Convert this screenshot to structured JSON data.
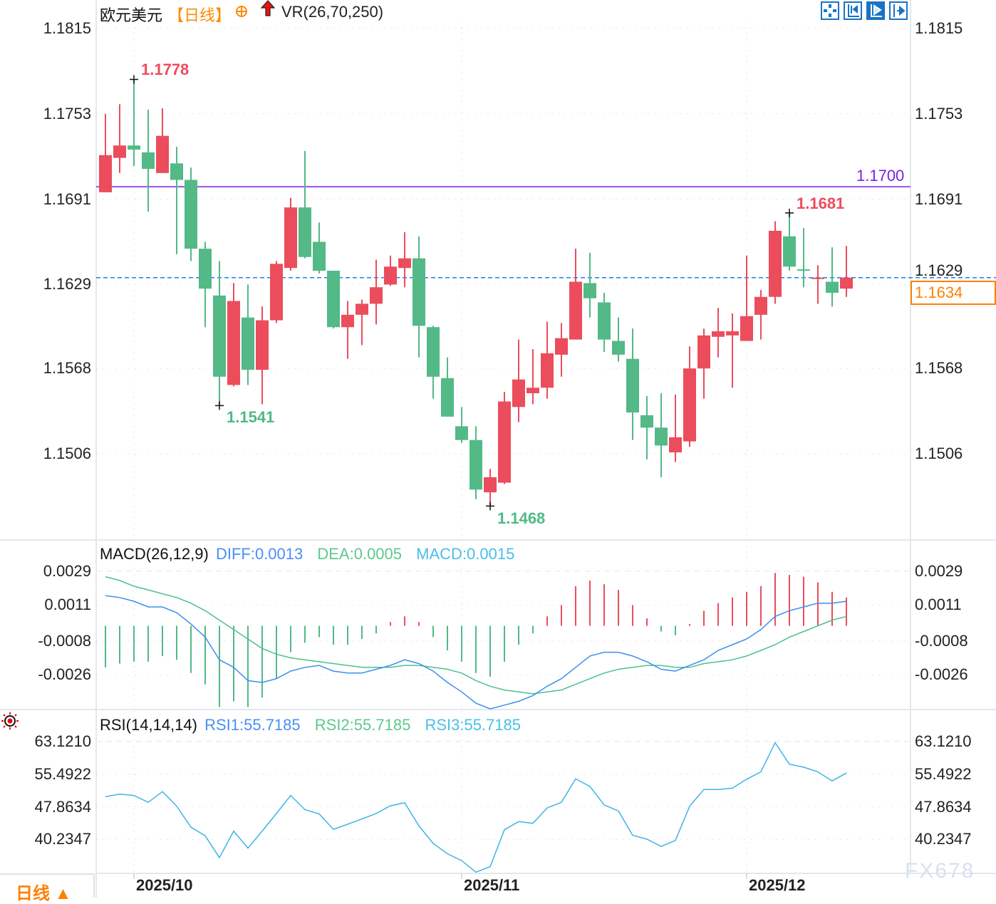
{
  "header": {
    "symbol": "欧元美元",
    "period": "【日线】",
    "add_icon": "circle-plus-icon",
    "indicator_icon": "red-up-arrow-icon",
    "indicator": "VR(26,70,250)"
  },
  "toolbar": {
    "icons": [
      "crosshair-move-icon",
      "zoom-range-icon",
      "draw-tool-icon",
      "scroll-to-end-icon"
    ]
  },
  "colors": {
    "up": "#eb4d5c",
    "down": "#52b987",
    "resistance": "#7b1fe6",
    "last_price": "#ff8000",
    "diff": "#3a8ff0",
    "dea": "#4cc28a",
    "rsi": "#3db5e6"
  },
  "main": {
    "y_ticks": [
      "1.1815",
      "1.1753",
      "1.1691",
      "1.1629",
      "1.1568",
      "1.1506"
    ],
    "resistance_label": "1.1700",
    "last_price_label": "1.1634",
    "high_label": "1.1778",
    "recent_high_label": "1.1681",
    "low_label": "1.1541",
    "recent_low_label": "1.1468"
  },
  "macd": {
    "title": "MACD(26,12,9)",
    "diff_label": "DIFF:0.0013",
    "dea_label": "DEA:0.0005",
    "macd_label": "MACD:0.0015",
    "y_ticks": [
      "0.0029",
      "0.0011",
      "-0.0008",
      "-0.0026"
    ]
  },
  "rsi": {
    "icon": "indicator-settings-icon",
    "title": "RSI(14,14,14)",
    "rsi1_label": "RSI1:55.7185",
    "rsi2_label": "RSI2:55.7185",
    "rsi3_label": "RSI3:55.7185",
    "y_ticks": [
      "63.1210",
      "55.4922",
      "47.8634",
      "40.2347"
    ]
  },
  "x_axis": {
    "labels": [
      "2025/10",
      "2025/11",
      "2025/12"
    ]
  },
  "footer": {
    "period_button": "日线 ▲",
    "watermark": "FX678"
  },
  "chart_data": [
    {
      "type": "candlestick",
      "title": "欧元美元",
      "ylim": [
        1.144,
        1.1815
      ],
      "y_ticks": [
        1.1815,
        1.1753,
        1.1691,
        1.1629,
        1.1568,
        1.1506
      ],
      "x_tick_labels": [
        "2025/10",
        "2025/11",
        "2025/12"
      ],
      "x_tick_candle_index": [
        2,
        25,
        45
      ],
      "grid": true,
      "horizontal_lines": [
        {
          "value": 1.17,
          "style": "solid"
        },
        {
          "value": 1.1634,
          "style": "dashed"
        }
      ],
      "annotations": [
        {
          "text": "1.1778",
          "candle_index": 2,
          "kind": "high"
        },
        {
          "text": "1.1541",
          "candle_index": 8,
          "kind": "low"
        },
        {
          "text": "1.1468",
          "candle_index": 27,
          "kind": "low"
        },
        {
          "text": "1.1681",
          "candle_index": 48,
          "kind": "high"
        }
      ],
      "ohlc_fields": [
        "open",
        "high",
        "low",
        "close"
      ],
      "candles": [
        [
          1.1696,
          1.1753,
          1.1696,
          1.1723
        ],
        [
          1.1721,
          1.176,
          1.171,
          1.173
        ],
        [
          1.173,
          1.1778,
          1.1715,
          1.1727
        ],
        [
          1.1725,
          1.1756,
          1.1682,
          1.1713
        ],
        [
          1.171,
          1.1757,
          1.171,
          1.1737
        ],
        [
          1.1717,
          1.1729,
          1.1651,
          1.1705
        ],
        [
          1.1705,
          1.1714,
          1.1646,
          1.1655
        ],
        [
          1.1655,
          1.166,
          1.1598,
          1.1626
        ],
        [
          1.1621,
          1.1646,
          1.1541,
          1.1562
        ],
        [
          1.1556,
          1.163,
          1.1555,
          1.1617
        ],
        [
          1.1605,
          1.1629,
          1.1556,
          1.1567
        ],
        [
          1.1567,
          1.1613,
          1.1542,
          1.1603
        ],
        [
          1.1603,
          1.1646,
          1.1601,
          1.1644
        ],
        [
          1.1641,
          1.1692,
          1.1639,
          1.1685
        ],
        [
          1.1685,
          1.1726,
          1.1648,
          1.1649
        ],
        [
          1.166,
          1.1674,
          1.1637,
          1.1639
        ],
        [
          1.1639,
          1.1639,
          1.1597,
          1.1598
        ],
        [
          1.1598,
          1.1617,
          1.1575,
          1.1607
        ],
        [
          1.1607,
          1.1618,
          1.1585,
          1.1615
        ],
        [
          1.1615,
          1.1647,
          1.16,
          1.1627
        ],
        [
          1.1629,
          1.165,
          1.1628,
          1.1642
        ],
        [
          1.1641,
          1.1667,
          1.1627,
          1.1648
        ],
        [
          1.1648,
          1.1664,
          1.1576,
          1.1599
        ],
        [
          1.1598,
          1.1599,
          1.1546,
          1.1562
        ],
        [
          1.1561,
          1.1576,
          1.1533,
          1.1533
        ],
        [
          1.1526,
          1.154,
          1.1514,
          1.1516
        ],
        [
          1.1516,
          1.1526,
          1.1473,
          1.148
        ],
        [
          1.1478,
          1.1495,
          1.1468,
          1.1489
        ],
        [
          1.1485,
          1.1551,
          1.1484,
          1.1544
        ],
        [
          1.154,
          1.1589,
          1.1529,
          1.156
        ],
        [
          1.155,
          1.1582,
          1.1542,
          1.1554
        ],
        [
          1.1554,
          1.1602,
          1.1546,
          1.1579
        ],
        [
          1.1578,
          1.1601,
          1.1562,
          1.159
        ],
        [
          1.1589,
          1.1655,
          1.1589,
          1.1631
        ],
        [
          1.163,
          1.1652,
          1.1605,
          1.1619
        ],
        [
          1.1616,
          1.1623,
          1.158,
          1.1589
        ],
        [
          1.1588,
          1.1605,
          1.1573,
          1.1578
        ],
        [
          1.1575,
          1.1597,
          1.1516,
          1.1536
        ],
        [
          1.1534,
          1.1548,
          1.1502,
          1.1525
        ],
        [
          1.1525,
          1.155,
          1.1489,
          1.1512
        ],
        [
          1.1507,
          1.1549,
          1.15,
          1.1518
        ],
        [
          1.1515,
          1.1584,
          1.1511,
          1.1568
        ],
        [
          1.1568,
          1.1597,
          1.1546,
          1.1592
        ],
        [
          1.1591,
          1.1612,
          1.1576,
          1.1595
        ],
        [
          1.1592,
          1.1608,
          1.1554,
          1.1595
        ],
        [
          1.1588,
          1.165,
          1.1588,
          1.1606
        ],
        [
          1.1607,
          1.1625,
          1.1589,
          1.162
        ],
        [
          1.162,
          1.1675,
          1.1615,
          1.1668
        ],
        [
          1.1664,
          1.1681,
          1.1639,
          1.1642
        ],
        [
          1.164,
          1.167,
          1.1627,
          1.1639
        ],
        [
          1.1633,
          1.1643,
          1.1615,
          1.1634
        ],
        [
          1.1631,
          1.1656,
          1.1613,
          1.1623
        ],
        [
          1.1626,
          1.1657,
          1.162,
          1.1634
        ]
      ]
    },
    {
      "type": "bar+line",
      "title": "MACD(26,12,9)",
      "ylim": [
        -0.0045,
        0.0031
      ],
      "y_ticks": [
        0.0029,
        0.0011,
        -0.0008,
        -0.0026
      ],
      "series": [
        {
          "name": "DIFF",
          "type": "line",
          "values": [
            0.0016,
            0.0015,
            0.0013,
            0.001,
            0.001,
            0.0007,
            0.0001,
            -0.0006,
            -0.0018,
            -0.0022,
            -0.0029,
            -0.003,
            -0.0028,
            -0.0024,
            -0.0022,
            -0.0021,
            -0.0024,
            -0.0025,
            -0.0025,
            -0.0023,
            -0.0021,
            -0.0018,
            -0.002,
            -0.0024,
            -0.003,
            -0.0035,
            -0.0041,
            -0.0044,
            -0.0042,
            -0.004,
            -0.0037,
            -0.0032,
            -0.0028,
            -0.0022,
            -0.0016,
            -0.0014,
            -0.0014,
            -0.0016,
            -0.0019,
            -0.0023,
            -0.0024,
            -0.0021,
            -0.0018,
            -0.0013,
            -0.001,
            -0.0007,
            -0.0002,
            0.0005,
            0.0008,
            0.001,
            0.0012,
            0.0012,
            0.0013
          ]
        },
        {
          "name": "DEA",
          "type": "line",
          "values": [
            0.0026,
            0.0024,
            0.0021,
            0.0019,
            0.0017,
            0.0015,
            0.0012,
            0.0008,
            0.0003,
            -0.0002,
            -0.0007,
            -0.0012,
            -0.0015,
            -0.0017,
            -0.0018,
            -0.0019,
            -0.002,
            -0.0021,
            -0.0022,
            -0.0022,
            -0.0022,
            -0.0021,
            -0.0021,
            -0.0022,
            -0.0023,
            -0.0025,
            -0.0029,
            -0.0032,
            -0.0034,
            -0.0035,
            -0.0036,
            -0.0035,
            -0.0034,
            -0.0031,
            -0.0028,
            -0.0025,
            -0.0023,
            -0.0022,
            -0.0021,
            -0.0021,
            -0.0022,
            -0.0022,
            -0.002,
            -0.0019,
            -0.0018,
            -0.0016,
            -0.0013,
            -0.001,
            -0.0006,
            -0.0003,
            0.0,
            0.0003,
            0.0005
          ]
        },
        {
          "name": "MACD",
          "type": "bar",
          "values": [
            -0.0022,
            -0.002,
            -0.0019,
            -0.0019,
            -0.0016,
            -0.0018,
            -0.0025,
            -0.0031,
            -0.0043,
            -0.004,
            -0.0043,
            -0.0038,
            -0.0028,
            -0.0014,
            -0.0009,
            -0.0006,
            -0.001,
            -0.001,
            -0.0007,
            -0.0004,
            0.0002,
            0.0005,
            0.0002,
            -0.0006,
            -0.0013,
            -0.0019,
            -0.0025,
            -0.0027,
            -0.0019,
            -0.001,
            -0.0004,
            0.0005,
            0.0011,
            0.0021,
            0.0024,
            0.0022,
            0.0019,
            0.0011,
            0.0004,
            -0.0003,
            -0.0005,
            0.0001,
            0.0008,
            0.0012,
            0.0015,
            0.0018,
            0.0021,
            0.0028,
            0.0027,
            0.0026,
            0.0023,
            0.0018,
            0.0015
          ]
        }
      ]
    },
    {
      "type": "line",
      "title": "RSI(14,14,14)",
      "ylim": [
        32.0,
        63.121
      ],
      "y_ticks": [
        63.121,
        55.4922,
        47.8634,
        40.2347
      ],
      "series": [
        {
          "name": "RSI1",
          "values": [
            50.2,
            50.8,
            50.5,
            48.9,
            51.4,
            48.0,
            43.1,
            41.1,
            36.0,
            42.2,
            38.2,
            42.2,
            46.3,
            50.5,
            47.2,
            46.2,
            42.6,
            43.8,
            45.0,
            46.3,
            48.1,
            48.8,
            43.4,
            39.3,
            36.9,
            35.3,
            32.6,
            33.9,
            42.5,
            44.4,
            44.0,
            47.6,
            48.9,
            54.4,
            52.6,
            48.3,
            46.9,
            41.2,
            40.3,
            38.6,
            40.0,
            48.0,
            51.9,
            51.9,
            52.2,
            54.3,
            56.0,
            62.8,
            57.8,
            57.1,
            56.0,
            53.9,
            55.72
          ]
        }
      ]
    }
  ]
}
